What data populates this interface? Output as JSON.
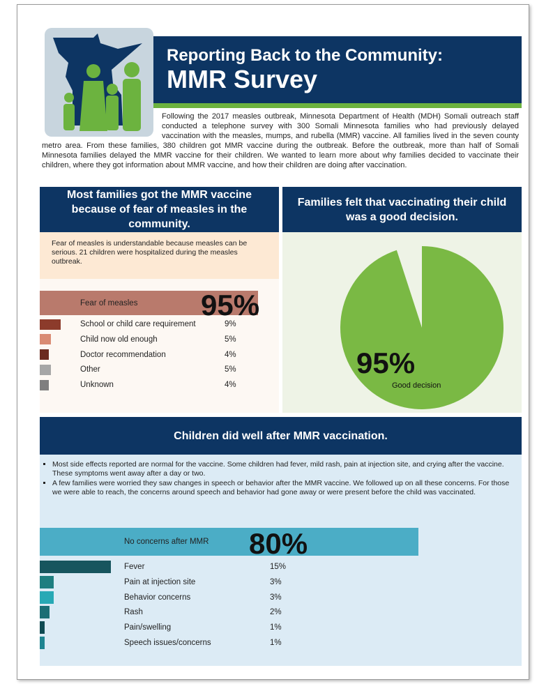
{
  "header": {
    "title_line1": "Reporting Back to the Community:",
    "title_line2": "MMR Survey"
  },
  "intro": "Following the 2017 measles outbreak, Minnesota Department of Health (MDH)  Somali outreach staff conducted a telephone survey with 300 Somali Minnesota families who had previously delayed vaccination with the measles, mumps, and rubella (MMR) vaccine. All families lived in the seven county metro area. From these families, 380 children got MMR vaccine during the outbreak. Before the outbreak, more than half of Somali Minnesota families delayed the MMR vaccine for their children. We wanted to learn more about why families decided to vaccinate their children, where they got information about MMR vaccine, and how their children are doing after vaccination.",
  "reasons": {
    "title": "Most families got the MMR vaccine because of fear of measles in the community.",
    "note": "Fear of measles is understandable because measles can be serious. 21 children were hospitalized during the measles outbreak.",
    "categories": [
      "Fear of measles",
      "School or child care requirement",
      "Child now old enough",
      "Doctor recommendation",
      "Other",
      "Unknown"
    ],
    "values": [
      95,
      9,
      5,
      4,
      5,
      4
    ],
    "value_labels": [
      "95%",
      "9%",
      "5%",
      "4%",
      "5%",
      "4%"
    ],
    "colors": [
      "#b97a6c",
      "#8c3b2b",
      "#d98b73",
      "#6b2b1f",
      "#a6a6a6",
      "#7f7f7f"
    ]
  },
  "decision": {
    "title": "Families felt that vaccinating their child was a good decision.",
    "type": "pie",
    "categories": [
      "Good decision"
    ],
    "values": [
      95
    ],
    "value_labels": [
      "95%"
    ],
    "color": "#7ab944"
  },
  "outcomes": {
    "title": "Children did well after MMR vaccination.",
    "bullets": [
      "Most side effects reported are normal for the vaccine. Some children had fever, mild rash, pain at injection site, and crying after the vaccine.  These symptoms went away after a day or two.",
      "A few families were worried they saw changes in speech or behavior after the MMR vaccine. We followed up on all these concerns. For those we were able to reach, the concerns around speech and behavior had gone away or were present before the child was vaccinated."
    ],
    "categories": [
      "No concerns after MMR",
      "Fever",
      "Pain at injection site",
      "Behavior concerns",
      "Rash",
      "Pain/swelling",
      "Speech issues/concerns"
    ],
    "values": [
      80,
      15,
      3,
      3,
      2,
      1,
      1
    ],
    "value_labels": [
      "80%",
      "15%",
      "3%",
      "3%",
      "2%",
      "1%",
      "1%"
    ],
    "colors": [
      "#4badc6",
      "#17555e",
      "#1e7e80",
      "#27a9b5",
      "#1a6e75",
      "#0f4a52",
      "#1f8591"
    ]
  }
}
